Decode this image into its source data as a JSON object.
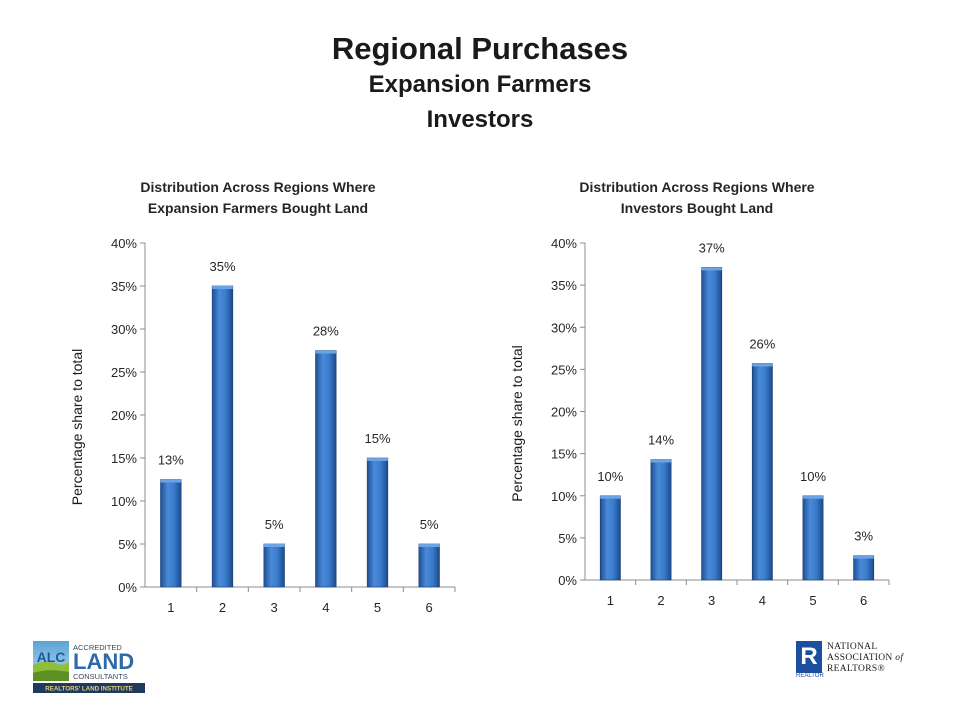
{
  "slide": {
    "title_line1": "Regional Purchases",
    "title_line2": "Expansion Farmers",
    "title_line3": "Investors"
  },
  "chart_data": [
    {
      "type": "bar",
      "title_lines": [
        "Distribution Across Regions Where",
        "Expansion Farmers  Bought Land"
      ],
      "ylabel": "Percentage share to total",
      "categories": [
        "1",
        "2",
        "3",
        "4",
        "5",
        "6"
      ],
      "values": [
        12.5,
        35,
        5,
        27.5,
        15,
        5
      ],
      "data_labels": [
        "13%",
        "35%",
        "5%",
        "28%",
        "15%",
        "5%"
      ],
      "ylim": [
        0,
        40
      ],
      "yticks": [
        "0%",
        "5%",
        "10%",
        "15%",
        "20%",
        "25%",
        "30%",
        "35%",
        "40%"
      ],
      "grid": false,
      "bar_color": "#2e6fc0"
    },
    {
      "type": "bar",
      "title_lines": [
        "Distribution Across Regions Where",
        "Investors Bought Land"
      ],
      "ylabel": "Percentage share to total",
      "categories": [
        "1",
        "2",
        "3",
        "4",
        "5",
        "6"
      ],
      "values": [
        10,
        14.3,
        37.1,
        25.7,
        10,
        2.9
      ],
      "data_labels": [
        "10%",
        "14%",
        "37%",
        "26%",
        "10%",
        "3%"
      ],
      "ylim": [
        0,
        40
      ],
      "yticks": [
        "0%",
        "5%",
        "10%",
        "15%",
        "20%",
        "25%",
        "30%",
        "35%",
        "40%"
      ],
      "grid": false,
      "bar_color": "#2e6fc0"
    }
  ],
  "logos": {
    "alc": {
      "badge": "ALC",
      "line1": "ACCREDITED",
      "line2": "LAND",
      "line3": "CONSULTANTS",
      "footer": "REALTORS' LAND INSTITUTE"
    },
    "nar": {
      "mark": "R",
      "mark_sub": "REALTOR",
      "line1": "NATIONAL",
      "line2_a": "ASSOCIATION",
      "line2_b": "of",
      "line3": "REALTORS®"
    }
  }
}
